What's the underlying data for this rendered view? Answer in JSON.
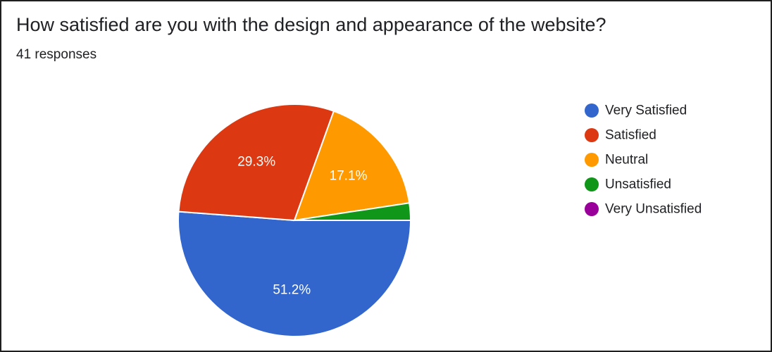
{
  "header": {
    "title": "How satisfied are you with the design and appearance of the website?",
    "responses": "41 responses"
  },
  "chart_data": {
    "type": "pie",
    "title": "How satisfied are you with the design and appearance of the website?",
    "subtitle": "41 responses",
    "legend_position": "right",
    "start_direction": "right",
    "direction": "clockwise",
    "categories": [
      "Very Satisfied",
      "Satisfied",
      "Neutral",
      "Unsatisfied",
      "Very Unsatisfied"
    ],
    "values": [
      51.2,
      29.3,
      17.1,
      2.4,
      0
    ],
    "labels": [
      "51.2%",
      "29.3%",
      "17.1%",
      "",
      ""
    ],
    "colors": [
      "#3366cc",
      "#dc3912",
      "#ff9900",
      "#109618",
      "#990099"
    ]
  }
}
